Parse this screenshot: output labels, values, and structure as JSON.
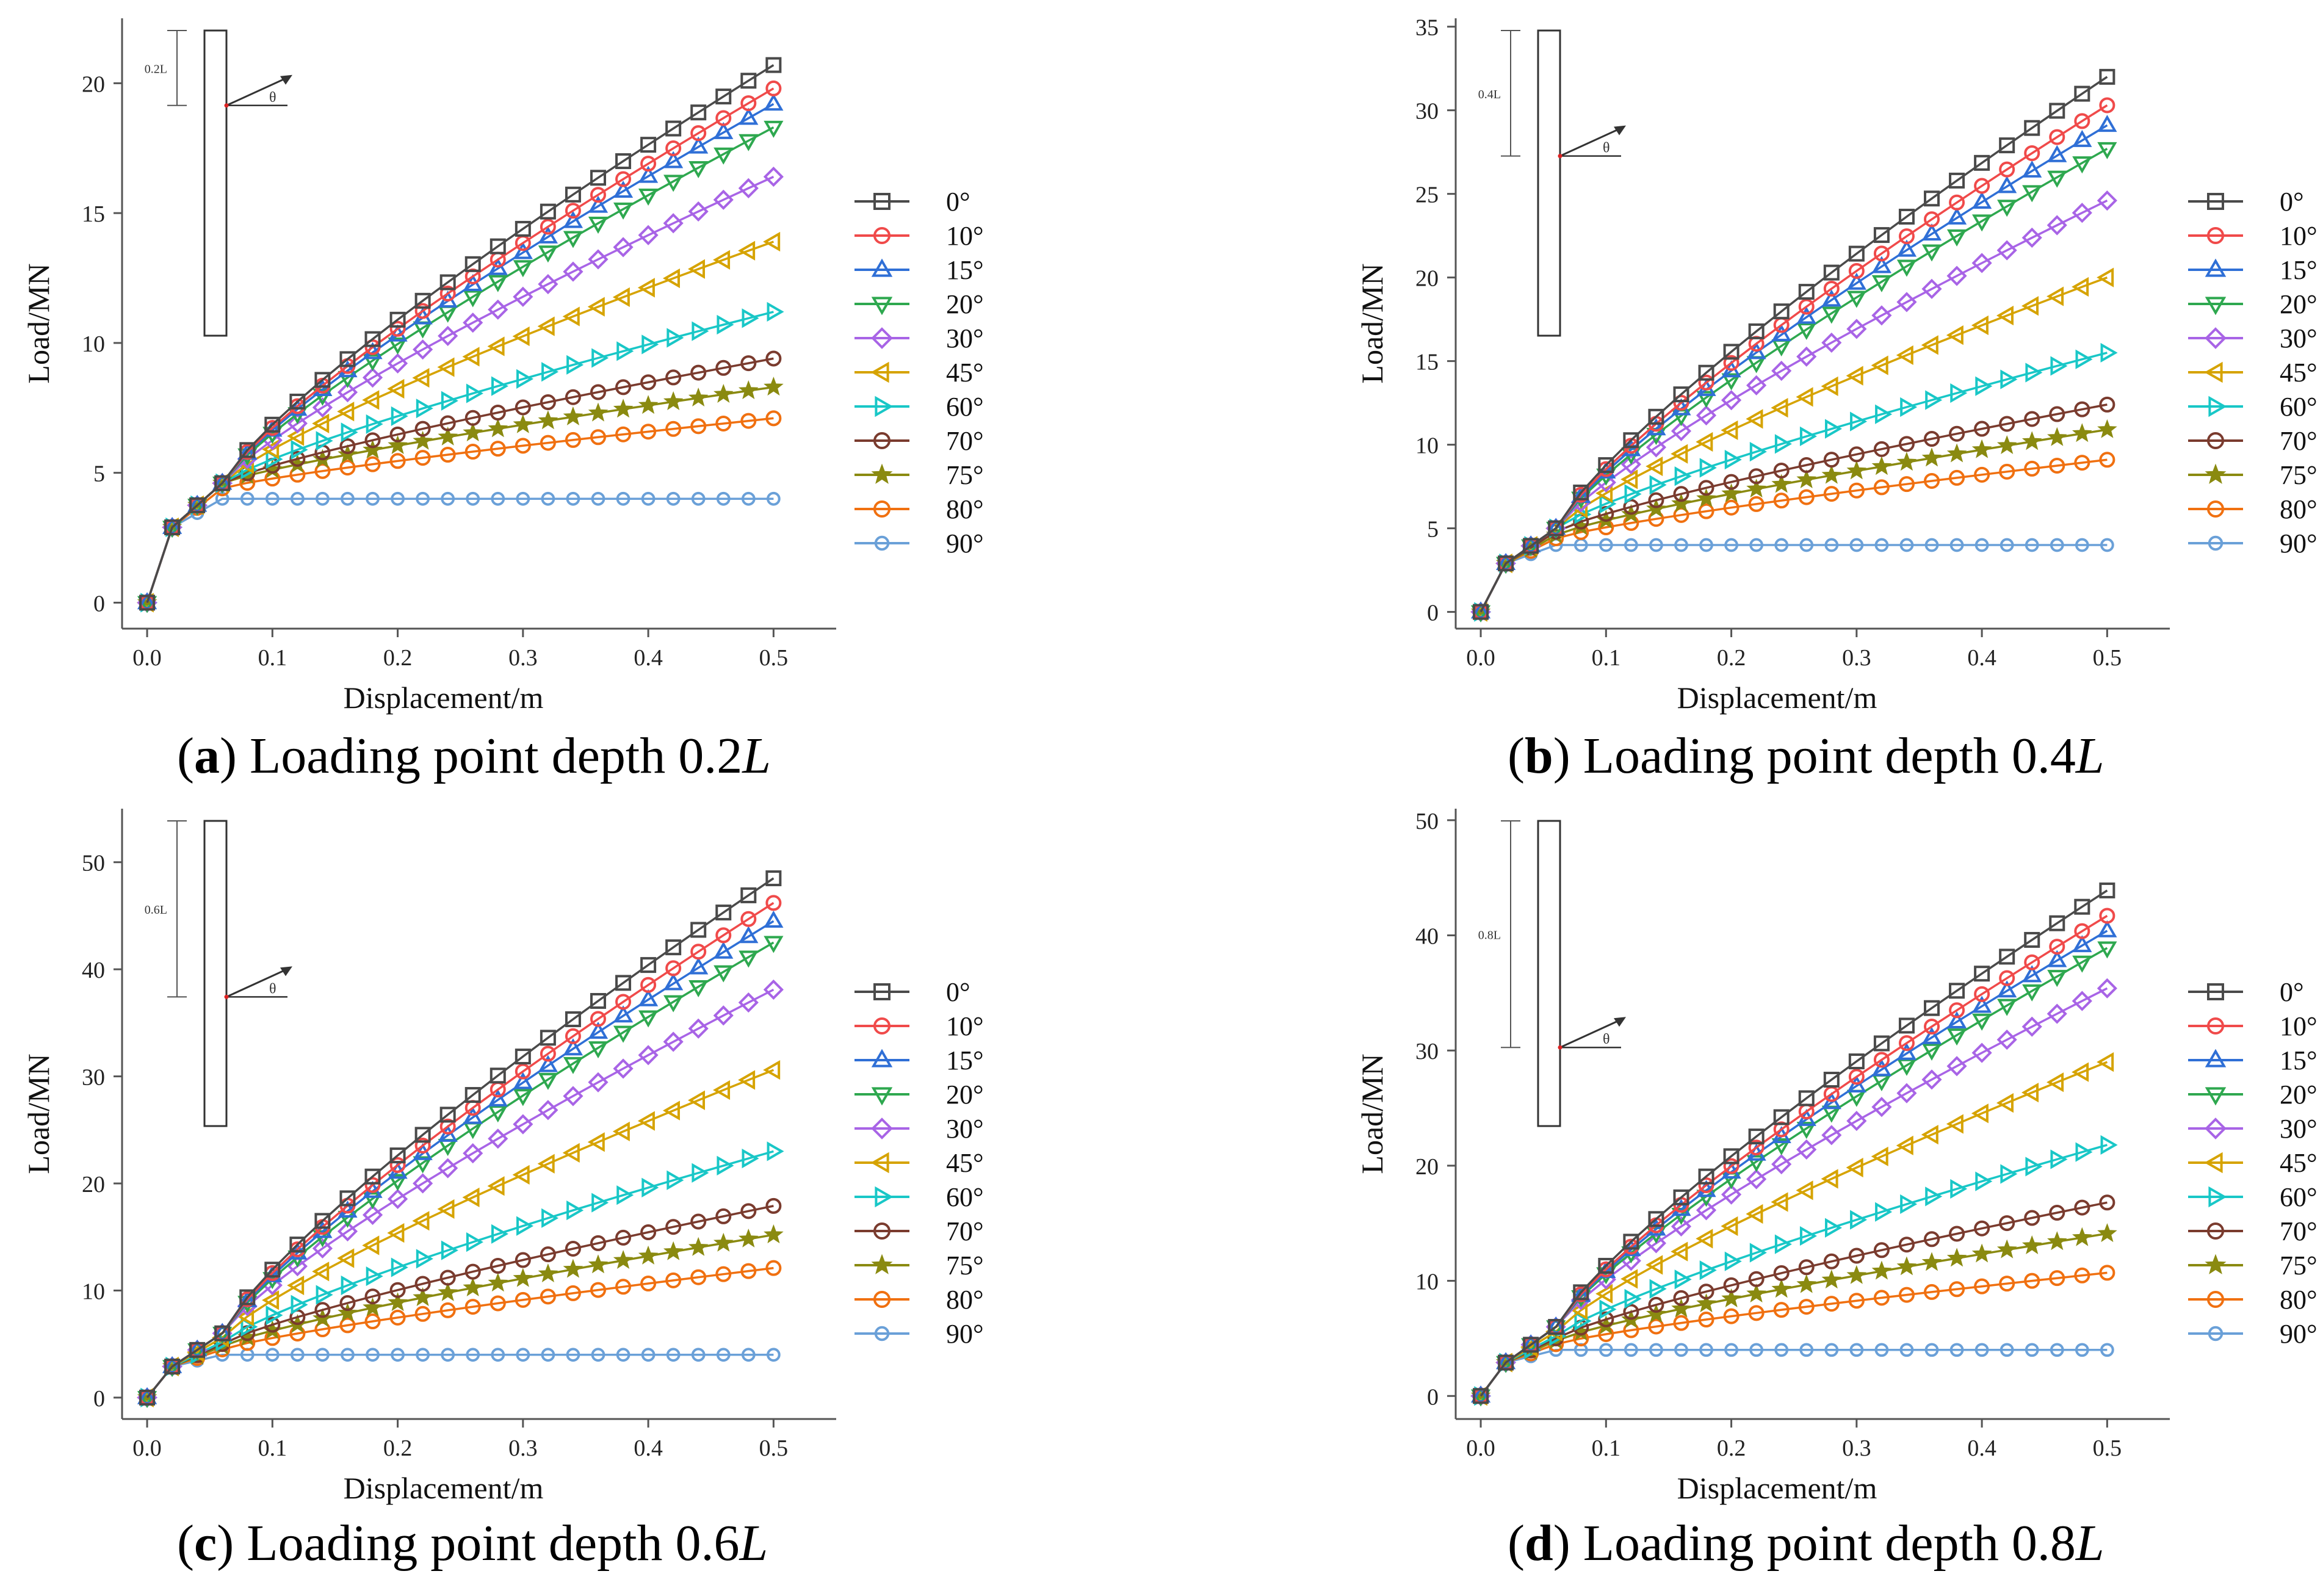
{
  "figure": {
    "series_styles": [
      {
        "name": "0°",
        "color": "#4a4a4a",
        "marker": "square"
      },
      {
        "name": "10°",
        "color": "#f04a4a",
        "marker": "circle"
      },
      {
        "name": "15°",
        "color": "#2f6fd6",
        "marker": "triangle-up"
      },
      {
        "name": "20°",
        "color": "#2ea84f",
        "marker": "triangle-down"
      },
      {
        "name": "30°",
        "color": "#a864e6",
        "marker": "diamond"
      },
      {
        "name": "45°",
        "color": "#d6a300",
        "marker": "triangle-left"
      },
      {
        "name": "60°",
        "color": "#19c7c7",
        "marker": "triangle-right"
      },
      {
        "name": "70°",
        "color": "#7a3b2e",
        "marker": "circle"
      },
      {
        "name": "75°",
        "color": "#8a8a10",
        "marker": "star"
      },
      {
        "name": "80°",
        "color": "#f07010",
        "marker": "circle"
      },
      {
        "name": "90°",
        "color": "#6aa0d8",
        "marker": "circle-small"
      }
    ]
  },
  "chart_data": [
    {
      "type": "line",
      "panel": "a",
      "caption_letter": "a",
      "caption_text": "Loading point depth 0.2",
      "caption_italic": "L",
      "inset_label": "0.2L",
      "inset_angle": "θ",
      "xlabel": "Displacement/m",
      "ylabel": "Load/MN",
      "xlim": [
        -0.02,
        0.55
      ],
      "ylim": [
        -1,
        22.5
      ],
      "xticks": [
        0.0,
        0.1,
        0.2,
        0.3,
        0.4,
        0.5
      ],
      "xtick_labels": [
        "0.0",
        "0.1",
        "0.2",
        "0.3",
        "0.4",
        "0.5"
      ],
      "yticks": [
        0,
        5,
        10,
        15,
        20
      ],
      "ytick_labels": [
        "0",
        "5",
        "10",
        "15",
        "20"
      ],
      "series": [
        {
          "name": "0°",
          "start": 4.6,
          "end": 20.7
        },
        {
          "name": "10°",
          "start": 4.6,
          "end": 19.8
        },
        {
          "name": "15°",
          "start": 4.6,
          "end": 19.2
        },
        {
          "name": "20°",
          "start": 4.6,
          "end": 18.3
        },
        {
          "name": "30°",
          "start": 4.6,
          "end": 16.4
        },
        {
          "name": "45°",
          "start": 4.6,
          "end": 13.9
        },
        {
          "name": "60°",
          "start": 4.6,
          "end": 11.2
        },
        {
          "name": "70°",
          "start": 4.6,
          "end": 9.4
        },
        {
          "name": "75°",
          "start": 4.6,
          "end": 8.3
        },
        {
          "name": "80°",
          "start": 4.4,
          "end": 7.1
        },
        {
          "name": "90°",
          "start": 4.0,
          "end": 4.0
        }
      ]
    },
    {
      "type": "line",
      "panel": "b",
      "caption_letter": "b",
      "caption_text": "Loading point depth 0.4",
      "caption_italic": "L",
      "inset_label": "0.4L",
      "inset_angle": "θ",
      "xlabel": "Displacement/m",
      "ylabel": "Load/MN",
      "xlim": [
        -0.02,
        0.55
      ],
      "ylim": [
        -1,
        35.5
      ],
      "xticks": [
        0.0,
        0.1,
        0.2,
        0.3,
        0.4,
        0.5
      ],
      "xtick_labels": [
        "0.0",
        "0.1",
        "0.2",
        "0.3",
        "0.4",
        "0.5"
      ],
      "yticks": [
        0,
        5,
        10,
        15,
        20,
        25,
        30,
        35
      ],
      "ytick_labels": [
        "0",
        "5",
        "10",
        "15",
        "20",
        "25",
        "30",
        "35"
      ],
      "series": [
        {
          "name": "0°",
          "start": 5.0,
          "end": 32.0
        },
        {
          "name": "10°",
          "start": 5.0,
          "end": 30.3
        },
        {
          "name": "15°",
          "start": 5.0,
          "end": 29.1
        },
        {
          "name": "20°",
          "start": 5.0,
          "end": 27.7
        },
        {
          "name": "30°",
          "start": 5.0,
          "end": 24.6
        },
        {
          "name": "45°",
          "start": 5.0,
          "end": 20.0
        },
        {
          "name": "60°",
          "start": 5.0,
          "end": 15.5
        },
        {
          "name": "70°",
          "start": 4.8,
          "end": 12.4
        },
        {
          "name": "75°",
          "start": 4.6,
          "end": 10.9
        },
        {
          "name": "80°",
          "start": 4.4,
          "end": 9.1
        },
        {
          "name": "90°",
          "start": 4.0,
          "end": 4.0
        }
      ]
    },
    {
      "type": "line",
      "panel": "c",
      "caption_letter": "c",
      "caption_text": "Loading point depth 0.6",
      "caption_italic": "L",
      "inset_label": "0.6L",
      "inset_angle": "θ",
      "xlabel": "Displacement/m",
      "ylabel": "Load/MN",
      "xlim": [
        -0.02,
        0.55
      ],
      "ylim": [
        -2,
        55
      ],
      "xticks": [
        0.0,
        0.1,
        0.2,
        0.3,
        0.4,
        0.5
      ],
      "xtick_labels": [
        "0.0",
        "0.1",
        "0.2",
        "0.3",
        "0.4",
        "0.5"
      ],
      "yticks": [
        0,
        10,
        20,
        30,
        40,
        50
      ],
      "ytick_labels": [
        "0",
        "10",
        "20",
        "30",
        "40",
        "50"
      ],
      "series": [
        {
          "name": "0°",
          "start": 6.0,
          "end": 48.5
        },
        {
          "name": "10°",
          "start": 6.0,
          "end": 46.2
        },
        {
          "name": "15°",
          "start": 6.0,
          "end": 44.5
        },
        {
          "name": "20°",
          "start": 6.0,
          "end": 42.5
        },
        {
          "name": "30°",
          "start": 6.0,
          "end": 38.1
        },
        {
          "name": "45°",
          "start": 5.6,
          "end": 30.6
        },
        {
          "name": "60°",
          "start": 5.2,
          "end": 23.0
        },
        {
          "name": "70°",
          "start": 5.0,
          "end": 17.9
        },
        {
          "name": "75°",
          "start": 4.8,
          "end": 15.2
        },
        {
          "name": "80°",
          "start": 4.5,
          "end": 12.1
        },
        {
          "name": "90°",
          "start": 4.0,
          "end": 4.0
        }
      ]
    },
    {
      "type": "line",
      "panel": "d",
      "caption_letter": "d",
      "caption_text": "Loading point depth 0.8",
      "caption_italic": "L",
      "inset_label": "0.8L",
      "inset_angle": "θ",
      "xlabel": "Displacement/m",
      "ylabel": "Load/MN",
      "xlim": [
        -0.02,
        0.55
      ],
      "ylim": [
        -2,
        51
      ],
      "xticks": [
        0.0,
        0.1,
        0.2,
        0.3,
        0.4,
        0.5
      ],
      "xtick_labels": [
        "0.0",
        "0.1",
        "0.2",
        "0.3",
        "0.4",
        "0.5"
      ],
      "yticks": [
        0,
        10,
        20,
        30,
        40,
        50
      ],
      "ytick_labels": [
        "0",
        "10",
        "20",
        "30",
        "40",
        "50"
      ],
      "series": [
        {
          "name": "0°",
          "start": 6.0,
          "end": 43.9
        },
        {
          "name": "10°",
          "start": 6.0,
          "end": 41.7
        },
        {
          "name": "15°",
          "start": 6.0,
          "end": 40.4
        },
        {
          "name": "20°",
          "start": 6.0,
          "end": 38.9
        },
        {
          "name": "30°",
          "start": 6.0,
          "end": 35.4
        },
        {
          "name": "45°",
          "start": 5.6,
          "end": 29.0
        },
        {
          "name": "60°",
          "start": 5.2,
          "end": 21.8
        },
        {
          "name": "70°",
          "start": 5.0,
          "end": 16.8
        },
        {
          "name": "75°",
          "start": 4.8,
          "end": 14.1
        },
        {
          "name": "80°",
          "start": 4.5,
          "end": 10.7
        },
        {
          "name": "90°",
          "start": 4.0,
          "end": 4.0
        }
      ]
    }
  ]
}
